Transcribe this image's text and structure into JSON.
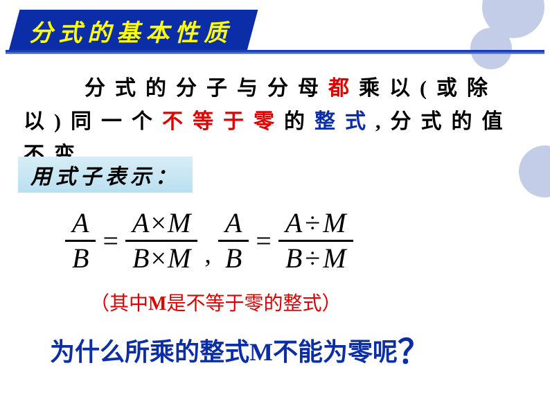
{
  "colors": {
    "banner_bg": "#0c2da8",
    "banner_text": "#ffff00",
    "rule_top": "#1a3fb5",
    "rule_bottom": "#5a7cd8",
    "circle": "#c4cde8",
    "red": "#e00000",
    "blue": "#0c2da8",
    "sub_bg_top": "#d8edf6",
    "sub_bg_bottom": "#b9e0f0",
    "body": "#000000",
    "page_bg": "#ffffff"
  },
  "typography": {
    "title_fontsize": 34,
    "body_fontsize": 30,
    "body_lineheight": 48,
    "body_letterspacing": 14,
    "sub_fontsize": 30,
    "equation_fontsize": 40,
    "condition_fontsize": 28,
    "question_fontsize": 36
  },
  "title": "分式的基本性质",
  "body": {
    "p1a": "分式的分子与分母",
    "p1b": "都",
    "p1c": "乘以(或除以)同一个",
    "p1d": "不等于零",
    "p1e": "的",
    "p1f": "整式",
    "p1g": ",分式的值不变."
  },
  "subheading": "用式子表示：",
  "equation": {
    "f1_num": "A",
    "f1_den": "B",
    "eq1": "=",
    "f2_num_a": "A",
    "f2_num_op": "×",
    "f2_num_b": "M",
    "f2_den_a": "B",
    "f2_den_op": "×",
    "f2_den_b": "M",
    "comma": ",",
    "f3_num": "A",
    "f3_den": "B",
    "eq2": "=",
    "f4_num_a": "A",
    "f4_num_op": "÷",
    "f4_num_b": "M",
    "f4_den_a": "B",
    "f4_den_op": "÷",
    "f4_den_b": "M"
  },
  "condition": {
    "open": "（其中",
    "m": "M",
    "rest": "是不等于零的整式）"
  },
  "question": {
    "a": "为什么所乘的整式",
    "m": "M",
    "b": "不能为零呢",
    "qm": "？"
  }
}
